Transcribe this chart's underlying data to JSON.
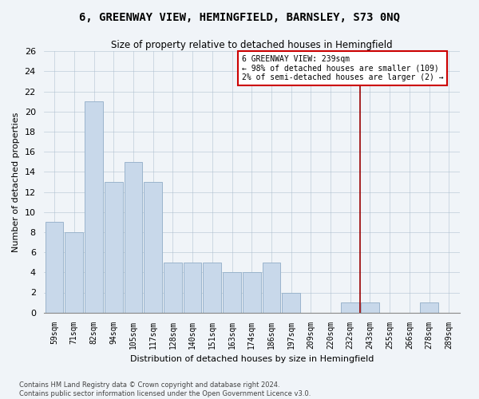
{
  "title": "6, GREENWAY VIEW, HEMINGFIELD, BARNSLEY, S73 0NQ",
  "subtitle": "Size of property relative to detached houses in Hemingfield",
  "xlabel": "Distribution of detached houses by size in Hemingfield",
  "ylabel": "Number of detached properties",
  "bar_labels": [
    "59sqm",
    "71sqm",
    "82sqm",
    "94sqm",
    "105sqm",
    "117sqm",
    "128sqm",
    "140sqm",
    "151sqm",
    "163sqm",
    "174sqm",
    "186sqm",
    "197sqm",
    "209sqm",
    "220sqm",
    "232sqm",
    "243sqm",
    "255sqm",
    "266sqm",
    "278sqm",
    "289sqm"
  ],
  "bar_values": [
    9,
    8,
    21,
    13,
    15,
    13,
    5,
    5,
    5,
    4,
    4,
    5,
    2,
    0,
    0,
    1,
    1,
    0,
    0,
    1,
    0
  ],
  "bar_color": "#c8d8ea",
  "bar_edge_color": "#9ab4cc",
  "vline_x": 16.0,
  "vline_color": "#990000",
  "annotation_text": "6 GREENWAY VIEW: 239sqm\n← 98% of detached houses are smaller (109)\n2% of semi-detached houses are larger (2) →",
  "annotation_box_color": "white",
  "annotation_box_edge": "#cc0000",
  "ylim": [
    0,
    26
  ],
  "yticks": [
    0,
    2,
    4,
    6,
    8,
    10,
    12,
    14,
    16,
    18,
    20,
    22,
    24,
    26
  ],
  "footer_line1": "Contains HM Land Registry data © Crown copyright and database right 2024.",
  "footer_line2": "Contains public sector information licensed under the Open Government Licence v3.0.",
  "bg_color": "#f0f4f8",
  "title_fontsize": 10,
  "subtitle_fontsize": 8.5,
  "xlabel_fontsize": 8,
  "ylabel_fontsize": 8,
  "tick_fontsize": 7,
  "annotation_fontsize": 7,
  "footer_fontsize": 6
}
